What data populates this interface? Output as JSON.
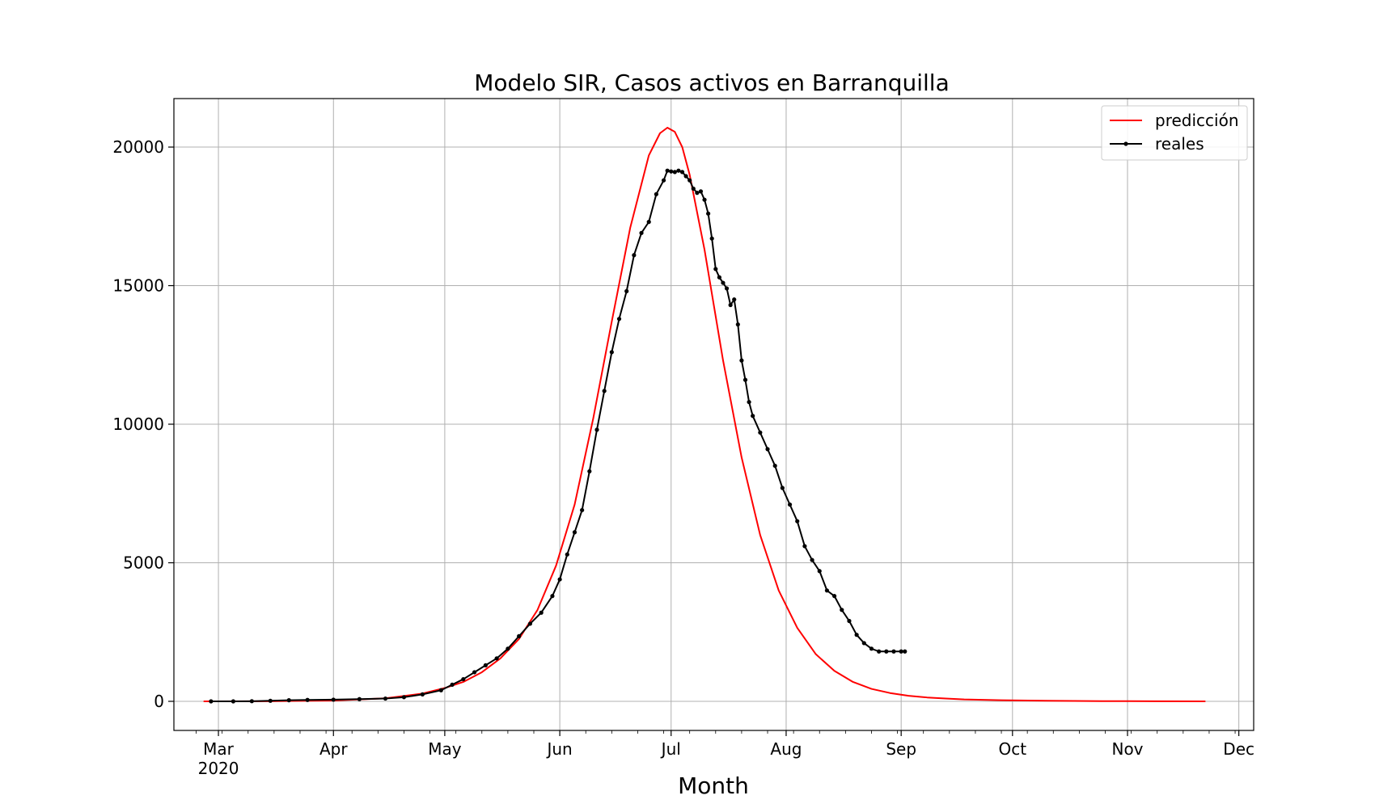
{
  "chart_data": {
    "type": "line",
    "title": "Modelo SIR, Casos activos en Barranquilla",
    "xlabel": "Month",
    "ylabel": "",
    "x_is_date": true,
    "xlim": [
      "2020-02-18",
      "2020-12-05"
    ],
    "ylim": [
      -1050,
      21750
    ],
    "x_ticks": [
      {
        "date": "2020-03-01",
        "label": "Mar",
        "sublabel": "2020"
      },
      {
        "date": "2020-04-01",
        "label": "Apr"
      },
      {
        "date": "2020-05-01",
        "label": "May"
      },
      {
        "date": "2020-06-01",
        "label": "Jun"
      },
      {
        "date": "2020-07-01",
        "label": "Jul"
      },
      {
        "date": "2020-08-01",
        "label": "Aug"
      },
      {
        "date": "2020-09-01",
        "label": "Sep"
      },
      {
        "date": "2020-10-01",
        "label": "Oct"
      },
      {
        "date": "2020-11-01",
        "label": "Nov"
      },
      {
        "date": "2020-12-01",
        "label": "Dec"
      }
    ],
    "y_ticks": [
      0,
      5000,
      10000,
      15000,
      20000
    ],
    "grid": true,
    "legend_position": "top-right",
    "series": [
      {
        "name": "predicción",
        "color": "#ff0000",
        "marker": "none",
        "x": [
          "2020-02-26",
          "2020-03-15",
          "2020-04-01",
          "2020-04-15",
          "2020-04-25",
          "2020-05-01",
          "2020-05-06",
          "2020-05-11",
          "2020-05-16",
          "2020-05-21",
          "2020-05-26",
          "2020-05-31",
          "2020-06-05",
          "2020-06-10",
          "2020-06-15",
          "2020-06-20",
          "2020-06-25",
          "2020-06-28",
          "2020-06-30",
          "2020-07-02",
          "2020-07-04",
          "2020-07-06",
          "2020-07-10",
          "2020-07-15",
          "2020-07-20",
          "2020-07-25",
          "2020-07-30",
          "2020-08-04",
          "2020-08-09",
          "2020-08-14",
          "2020-08-19",
          "2020-08-24",
          "2020-08-29",
          "2020-09-03",
          "2020-09-08",
          "2020-09-13",
          "2020-09-18",
          "2020-09-28",
          "2020-10-10",
          "2020-10-25",
          "2020-11-08",
          "2020-11-22"
        ],
        "y": [
          0,
          5,
          30,
          110,
          280,
          480,
          700,
          1050,
          1550,
          2250,
          3300,
          4900,
          7100,
          10200,
          13700,
          17100,
          19700,
          20500,
          20700,
          20550,
          20000,
          19000,
          16300,
          12300,
          8800,
          6000,
          4000,
          2650,
          1700,
          1100,
          700,
          450,
          300,
          200,
          140,
          100,
          70,
          40,
          20,
          8,
          3,
          0
        ]
      },
      {
        "name": "reales",
        "color": "#000000",
        "marker": "dot",
        "x": [
          "2020-02-28",
          "2020-03-05",
          "2020-03-10",
          "2020-03-15",
          "2020-03-20",
          "2020-03-25",
          "2020-04-01",
          "2020-04-08",
          "2020-04-15",
          "2020-04-20",
          "2020-04-25",
          "2020-04-30",
          "2020-05-03",
          "2020-05-06",
          "2020-05-09",
          "2020-05-12",
          "2020-05-15",
          "2020-05-18",
          "2020-05-21",
          "2020-05-24",
          "2020-05-27",
          "2020-05-30",
          "2020-06-01",
          "2020-06-03",
          "2020-06-05",
          "2020-06-07",
          "2020-06-09",
          "2020-06-11",
          "2020-06-13",
          "2020-06-15",
          "2020-06-17",
          "2020-06-19",
          "2020-06-21",
          "2020-06-23",
          "2020-06-25",
          "2020-06-27",
          "2020-06-29",
          "2020-06-30",
          "2020-07-01",
          "2020-07-02",
          "2020-07-03",
          "2020-07-04",
          "2020-07-05",
          "2020-07-06",
          "2020-07-07",
          "2020-07-08",
          "2020-07-09",
          "2020-07-10",
          "2020-07-11",
          "2020-07-12",
          "2020-07-13",
          "2020-07-14",
          "2020-07-15",
          "2020-07-16",
          "2020-07-17",
          "2020-07-18",
          "2020-07-19",
          "2020-07-20",
          "2020-07-21",
          "2020-07-22",
          "2020-07-23",
          "2020-07-25",
          "2020-07-27",
          "2020-07-29",
          "2020-07-31",
          "2020-08-02",
          "2020-08-04",
          "2020-08-06",
          "2020-08-08",
          "2020-08-10",
          "2020-08-12",
          "2020-08-14",
          "2020-08-16",
          "2020-08-18",
          "2020-08-20",
          "2020-08-22",
          "2020-08-24",
          "2020-08-26",
          "2020-08-28",
          "2020-08-30",
          "2020-09-01",
          "2020-09-02"
        ],
        "y": [
          0,
          0,
          5,
          20,
          40,
          50,
          60,
          80,
          100,
          150,
          250,
          400,
          600,
          800,
          1050,
          1300,
          1550,
          1900,
          2350,
          2800,
          3200,
          3800,
          4400,
          5300,
          6100,
          6900,
          8300,
          9800,
          11200,
          12600,
          13800,
          14800,
          16100,
          16900,
          17300,
          18300,
          18800,
          19150,
          19120,
          19100,
          19150,
          19100,
          18950,
          18800,
          18500,
          18350,
          18400,
          18100,
          17600,
          16700,
          15600,
          15300,
          15100,
          14900,
          14300,
          14500,
          13600,
          12300,
          11600,
          10800,
          10300,
          9700,
          9100,
          8500,
          7700,
          7100,
          6500,
          5600,
          5100,
          4700,
          4000,
          3800,
          3300,
          2900,
          2400,
          2100,
          1900,
          1800,
          1800,
          1800,
          1800,
          1800
        ]
      }
    ]
  }
}
